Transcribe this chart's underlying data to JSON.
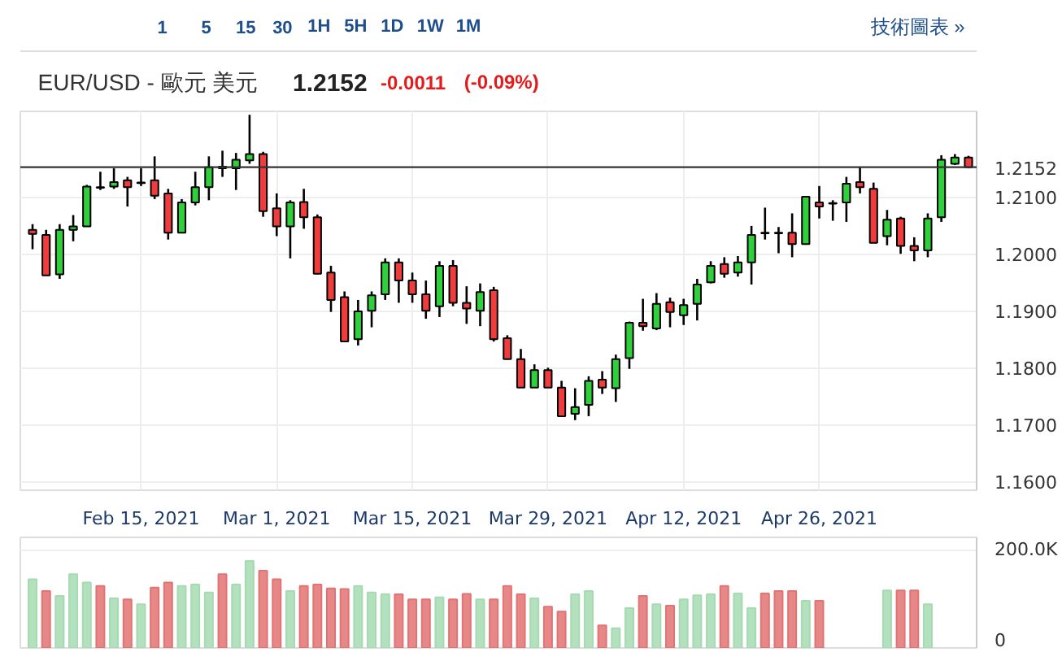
{
  "chart_data": [
    {
      "type": "candlestick",
      "title": "EUR/USD - 歐元 美元",
      "subtitle": "1.2152",
      "annotations": [
        "-0.0011",
        "(-0.09%)",
        "1 5 15 30 1H 5H 1D 1W 1M",
        "技術圖表 »"
      ],
      "categories": [
        null,
        null,
        null,
        null,
        null,
        null,
        null,
        null,
        "Feb 15, 2021",
        null,
        null,
        null,
        null,
        null,
        null,
        null,
        null,
        null,
        "Mar 1, 2021",
        null,
        null,
        null,
        null,
        null,
        null,
        null,
        null,
        null,
        "Mar 15, 2021",
        null,
        null,
        null,
        null,
        null,
        null,
        null,
        null,
        null,
        "Mar 29, 2021",
        null,
        null,
        null,
        null,
        null,
        null,
        null,
        null,
        null,
        "Apr 12, 2021",
        null,
        null,
        null,
        null,
        null,
        null,
        null,
        null,
        null,
        "Apr 26, 2021",
        null,
        null,
        null,
        null,
        null,
        null,
        null,
        null,
        null,
        null,
        null
      ],
      "ohlc": [
        [
          1.2042,
          1.2052,
          1.2008,
          1.2035
        ],
        [
          1.2033,
          1.2042,
          1.1962,
          1.1962
        ],
        [
          1.1964,
          1.2052,
          1.1956,
          1.2042
        ],
        [
          1.2042,
          1.2068,
          1.2022,
          1.2048
        ],
        [
          1.2048,
          1.2121,
          1.2048,
          1.2118
        ],
        [
          1.2116,
          1.2144,
          1.2112,
          1.2117
        ],
        [
          1.2118,
          1.215,
          1.2114,
          1.2126
        ],
        [
          1.2129,
          1.2135,
          1.2083,
          1.2117
        ],
        [
          1.2125,
          1.215,
          1.2119,
          1.2124
        ],
        [
          1.2129,
          1.2171,
          1.2096,
          1.2102
        ],
        [
          1.2106,
          1.2114,
          1.2025,
          1.2037
        ],
        [
          1.2037,
          1.2096,
          1.2037,
          1.209
        ],
        [
          1.209,
          1.2144,
          1.2085,
          1.2117
        ],
        [
          1.2117,
          1.2171,
          1.2094,
          1.2152
        ],
        [
          1.215,
          1.2181,
          1.2135,
          1.2153
        ],
        [
          1.215,
          1.2177,
          1.2112,
          1.2165
        ],
        [
          1.2164,
          1.2244,
          1.2158,
          1.2175
        ],
        [
          1.2175,
          1.2179,
          1.2065,
          1.2075
        ],
        [
          1.208,
          1.2106,
          1.2031,
          1.2048
        ],
        [
          1.2048,
          1.2094,
          1.1992,
          1.209
        ],
        [
          1.2091,
          1.2114,
          1.2044,
          1.2064
        ],
        [
          1.2064,
          1.2069,
          1.1964,
          1.1965
        ],
        [
          1.1967,
          1.1979,
          1.1898,
          1.1919
        ],
        [
          1.1924,
          1.1934,
          1.1846,
          1.1846
        ],
        [
          1.185,
          1.1919,
          1.1839,
          1.1899
        ],
        [
          1.19,
          1.1934,
          1.1871,
          1.1927
        ],
        [
          1.1929,
          1.1992,
          1.1919,
          1.1985
        ],
        [
          1.1985,
          1.1992,
          1.1914,
          1.1953
        ],
        [
          1.1953,
          1.1967,
          1.1914,
          1.1929
        ],
        [
          1.1929,
          1.1953,
          1.1886,
          1.19
        ],
        [
          1.1908,
          1.1987,
          1.1889,
          1.1979
        ],
        [
          1.1979,
          1.1989,
          1.1908,
          1.1914
        ],
        [
          1.1914,
          1.1943,
          1.1877,
          1.1904
        ],
        [
          1.19,
          1.1948,
          1.1873,
          1.1933
        ],
        [
          1.1936,
          1.1942,
          1.1846,
          1.185
        ],
        [
          1.1852,
          1.1857,
          1.1815,
          1.1815
        ],
        [
          1.1815,
          1.1833,
          1.1765,
          1.1765
        ],
        [
          1.1765,
          1.1806,
          1.1765,
          1.1796
        ],
        [
          1.1796,
          1.18,
          1.1765,
          1.1765
        ],
        [
          1.1765,
          1.1777,
          1.1715,
          1.1715
        ],
        [
          1.1719,
          1.1764,
          1.1708,
          1.1731
        ],
        [
          1.1735,
          1.1785,
          1.1715,
          1.1777
        ],
        [
          1.1779,
          1.1794,
          1.1754,
          1.1765
        ],
        [
          1.1764,
          1.1823,
          1.174,
          1.1815
        ],
        [
          1.1817,
          1.1881,
          1.1798,
          1.1879
        ],
        [
          1.1879,
          1.1921,
          1.1865,
          1.1873
        ],
        [
          1.1869,
          1.1931,
          1.1866,
          1.1912
        ],
        [
          1.1915,
          1.1923,
          1.1871,
          1.1898
        ],
        [
          1.1892,
          1.1921,
          1.1875,
          1.191
        ],
        [
          1.1912,
          1.1956,
          1.1883,
          1.1946
        ],
        [
          1.195,
          1.1987,
          1.1948,
          1.1979
        ],
        [
          1.1982,
          1.1994,
          1.1958,
          1.1965
        ],
        [
          1.1967,
          1.1996,
          1.196,
          1.1985
        ],
        [
          1.1985,
          1.2049,
          1.1946,
          1.2033
        ],
        [
          1.2036,
          1.2081,
          1.2025,
          1.2037
        ],
        [
          1.2036,
          1.2047,
          1.2001,
          1.2037
        ],
        [
          1.2037,
          1.2071,
          1.1994,
          1.2017
        ],
        [
          1.2017,
          1.21,
          1.2017,
          1.21
        ],
        [
          1.209,
          1.2119,
          1.2062,
          1.2083
        ],
        [
          1.2089,
          1.2094,
          1.2058,
          1.2088
        ],
        [
          1.209,
          1.2135,
          1.2056,
          1.2123
        ],
        [
          1.2126,
          1.2152,
          1.2106,
          1.2117
        ],
        [
          1.2114,
          1.2125,
          1.2019,
          1.2019
        ],
        [
          1.2031,
          1.2077,
          1.2015,
          1.206
        ],
        [
          1.2062,
          1.2065,
          1.2,
          1.2014
        ],
        [
          1.2014,
          1.2029,
          1.1987,
          1.2006
        ],
        [
          1.2006,
          1.2071,
          1.1994,
          1.2062
        ],
        [
          1.2064,
          1.2173,
          1.2056,
          1.2165
        ],
        [
          1.2158,
          1.2175,
          1.2156,
          1.2169
        ],
        [
          1.2169,
          1.2172,
          1.215,
          1.2152
        ]
      ],
      "colors": [
        "#f03c3c",
        "#f03c3c",
        "#2fd03c",
        "#2fd03c",
        "#2fd03c",
        "#2fd03c",
        "#2fd03c",
        "#f03c3c",
        "#f03c3c",
        "#f03c3c",
        "#f03c3c",
        "#2fd03c",
        "#2fd03c",
        "#2fd03c",
        "#2fd03c",
        "#2fd03c",
        "#2fd03c",
        "#f03c3c",
        "#f03c3c",
        "#2fd03c",
        "#f03c3c",
        "#f03c3c",
        "#f03c3c",
        "#f03c3c",
        "#2fd03c",
        "#2fd03c",
        "#2fd03c",
        "#f03c3c",
        "#f03c3c",
        "#f03c3c",
        "#2fd03c",
        "#f03c3c",
        "#f03c3c",
        "#2fd03c",
        "#f03c3c",
        "#f03c3c",
        "#f03c3c",
        "#2fd03c",
        "#f03c3c",
        "#f03c3c",
        "#2fd03c",
        "#2fd03c",
        "#f03c3c",
        "#2fd03c",
        "#2fd03c",
        "#f03c3c",
        "#2fd03c",
        "#f03c3c",
        "#2fd03c",
        "#2fd03c",
        "#2fd03c",
        "#f03c3c",
        "#2fd03c",
        "#2fd03c",
        "#2fd03c",
        "#2fd03c",
        "#f03c3c",
        "#2fd03c",
        "#f03c3c",
        "#f03c3c",
        "#2fd03c",
        "#f03c3c",
        "#f03c3c",
        "#2fd03c",
        "#f03c3c",
        "#f03c3c",
        "#2fd03c",
        "#2fd03c",
        "#2fd03c",
        "#f03c3c"
      ],
      "ylim": [
        1.1585,
        1.225
      ],
      "yticks": [
        {
          "value": 1.16,
          "label": "1.1600"
        },
        {
          "value": 1.17,
          "label": "1.1700"
        },
        {
          "value": 1.18,
          "label": "1.1800"
        },
        {
          "value": 1.19,
          "label": "1.1900"
        },
        {
          "value": 1.2,
          "label": "1.2000"
        },
        {
          "value": 1.21,
          "label": "1.2100"
        }
      ],
      "ref_lines": [
        {
          "axis": "y",
          "value": 1.2152,
          "label": "1.2152",
          "color": "#333333"
        }
      ],
      "grid": true
    },
    {
      "type": "bar",
      "categories": [
        null,
        null,
        null,
        null,
        null,
        null,
        null,
        null,
        null,
        null,
        null,
        null,
        null,
        null,
        null,
        null,
        null,
        null,
        null,
        null,
        null,
        null,
        null,
        null,
        null,
        null,
        null,
        null,
        null,
        null,
        null,
        null,
        null,
        null,
        null,
        null,
        null,
        null,
        null,
        null,
        null,
        null,
        null,
        null,
        null,
        null,
        null,
        null,
        null,
        null,
        null,
        null,
        null,
        null,
        null,
        null,
        null,
        null,
        null,
        null,
        null,
        null,
        null,
        null,
        null,
        null,
        null,
        null,
        null,
        null
      ],
      "values": [
        140000,
        116000,
        106000,
        150000,
        133000,
        126000,
        101000,
        99000,
        89000,
        123000,
        133000,
        126000,
        129000,
        113000,
        150000,
        129000,
        177000,
        157000,
        140000,
        116000,
        126000,
        129000,
        121000,
        120000,
        126000,
        113000,
        109000,
        109000,
        99000,
        99000,
        103000,
        99000,
        110000,
        99000,
        99000,
        126000,
        109000,
        101000,
        84000,
        74000,
        109000,
        116000,
        46000,
        40000,
        81000,
        106000,
        89000,
        86000,
        99000,
        107000,
        109000,
        126000,
        111000,
        81000,
        111000,
        116000,
        116000,
        96000,
        96000,
        null,
        null,
        null,
        null,
        117000,
        117000,
        117000,
        89000,
        null,
        null,
        null
      ],
      "colors": [
        "#a6dab2",
        "#e37373",
        "#a6dab2",
        "#a6dab2",
        "#a6dab2",
        "#e37373",
        "#a6dab2",
        "#e37373",
        "#a6dab2",
        "#e37373",
        "#e37373",
        "#a6dab2",
        "#a6dab2",
        "#a6dab2",
        "#e37373",
        "#a6dab2",
        "#a6dab2",
        "#e37373",
        "#e37373",
        "#a6dab2",
        "#e37373",
        "#e37373",
        "#e37373",
        "#e37373",
        "#a6dab2",
        "#a6dab2",
        "#a6dab2",
        "#e37373",
        "#e37373",
        "#e37373",
        "#a6dab2",
        "#e37373",
        "#e37373",
        "#a6dab2",
        "#e37373",
        "#e37373",
        "#e37373",
        "#a6dab2",
        "#e37373",
        "#e37373",
        "#a6dab2",
        "#a6dab2",
        "#e37373",
        "#a6dab2",
        "#a6dab2",
        "#e37373",
        "#a6dab2",
        "#e37373",
        "#a6dab2",
        "#a6dab2",
        "#a6dab2",
        "#e37373",
        "#a6dab2",
        "#a6dab2",
        "#e37373",
        "#e37373",
        "#e37373",
        "#a6dab2",
        "#e37373",
        null,
        null,
        null,
        null,
        "#a6dab2",
        "#e37373",
        "#e37373",
        "#a6dab2",
        null,
        null,
        null
      ],
      "ylim": [
        0,
        225000
      ],
      "yticks": [
        {
          "value": 0,
          "label": "0"
        },
        {
          "value": 200000,
          "label": "200.0K"
        }
      ],
      "tick_labels": "y",
      "grid": true
    }
  ]
}
